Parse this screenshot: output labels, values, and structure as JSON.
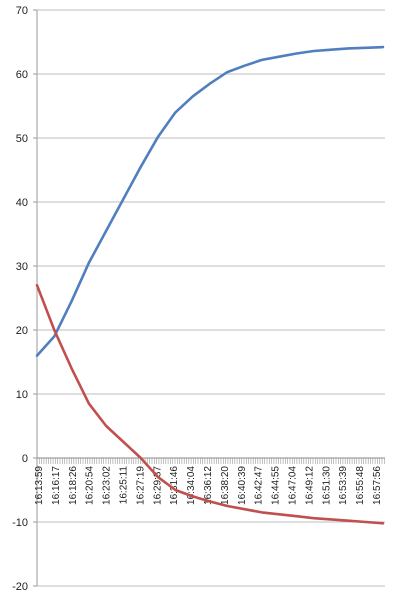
{
  "chart_data": {
    "type": "line",
    "title": "",
    "xlabel": "",
    "ylabel": "",
    "ylim": [
      -20,
      70
    ],
    "y_ticks": [
      -20,
      -10,
      0,
      10,
      20,
      30,
      40,
      50,
      60,
      70
    ],
    "grid": "horizontal",
    "legend": "none",
    "x_tick_labels": [
      "16:13:59",
      "16:16:17",
      "16:18:26",
      "16:20:54",
      "16:23:02",
      "16:25:11",
      "16:27:19",
      "16:29:37",
      "16:31:46",
      "16:34:04",
      "16:36:12",
      "16:38:20",
      "16:40:39",
      "16:42:47",
      "16:44:55",
      "16:47:04",
      "16:49:12",
      "16:51:30",
      "16:53:39",
      "16:55:48",
      "16:57:56"
    ],
    "series": [
      {
        "color": "#4f7fbf",
        "values": [
          16,
          19,
          24.5,
          30.5,
          35.5,
          40.5,
          45.5,
          50.2,
          54,
          56.5,
          58.5,
          60.3,
          61.3,
          62.2,
          62.7,
          63.2,
          63.6,
          63.8,
          64,
          64.1,
          64.2
        ]
      },
      {
        "color": "#c0504d",
        "values": [
          27,
          20,
          14,
          8.5,
          5,
          2.5,
          0,
          -3,
          -5,
          -6,
          -6.8,
          -7.5,
          -8,
          -8.5,
          -8.8,
          -9.1,
          -9.4,
          -9.6,
          -9.8,
          -10,
          -10.2
        ]
      }
    ]
  }
}
